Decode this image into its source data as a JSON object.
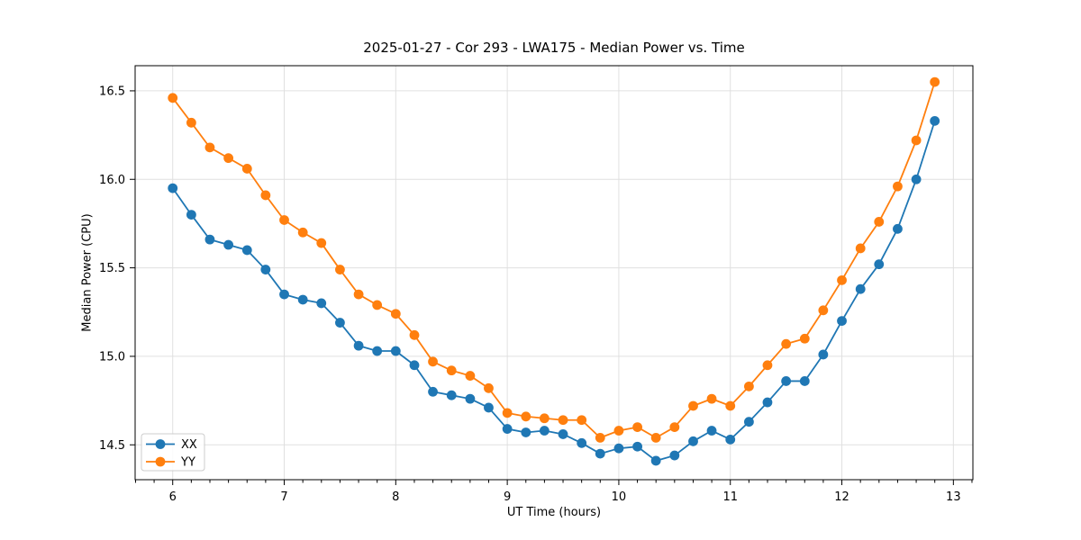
{
  "chart_data": {
    "type": "line",
    "title": "2025-01-27 - Cor 293 - LWA175 - Median Power vs. Time",
    "xlabel": "UT Time (hours)",
    "ylabel": "Median Power (CPU)",
    "xlim": [
      5.663,
      13.175
    ],
    "ylim": [
      14.303,
      16.642
    ],
    "grid": true,
    "x_ticks": {
      "values": [
        6,
        7,
        8,
        9,
        10,
        11,
        12,
        13
      ],
      "labels": [
        "6",
        "7",
        "8",
        "9",
        "10",
        "11",
        "12",
        "13"
      ],
      "minor_step_hours": 0.1667
    },
    "y_ticks": {
      "values": [
        14.5,
        15.0,
        15.5,
        16.0,
        16.5
      ],
      "labels": [
        "14.5",
        "15.0",
        "15.5",
        "16.0",
        "16.5"
      ]
    },
    "legend": {
      "position": "lower-left",
      "entries": [
        "XX",
        "YY"
      ]
    },
    "colors": {
      "XX": "#1f77b4",
      "YY": "#ff7f0e",
      "grid": "#e0e0e0",
      "spine": "#000000"
    },
    "x": [
      6.0,
      6.167,
      6.333,
      6.5,
      6.667,
      6.833,
      7.0,
      7.167,
      7.333,
      7.5,
      7.667,
      7.833,
      8.0,
      8.167,
      8.333,
      8.5,
      8.667,
      8.833,
      9.0,
      9.167,
      9.333,
      9.5,
      9.667,
      9.833,
      10.0,
      10.167,
      10.333,
      10.5,
      10.667,
      10.833,
      11.0,
      11.167,
      11.333,
      11.5,
      11.667,
      11.833,
      12.0,
      12.167,
      12.333,
      12.5,
      12.667,
      12.833
    ],
    "series": [
      {
        "name": "XX",
        "color": "#1f77b4",
        "marker": "circle",
        "values": [
          15.95,
          15.8,
          15.66,
          15.63,
          15.6,
          15.49,
          15.35,
          15.32,
          15.3,
          15.19,
          15.06,
          15.03,
          15.03,
          14.95,
          14.8,
          14.78,
          14.76,
          14.71,
          14.59,
          14.57,
          14.58,
          14.56,
          14.51,
          14.45,
          14.48,
          14.49,
          14.41,
          14.44,
          14.52,
          14.58,
          14.53,
          14.63,
          14.74,
          14.86,
          14.86,
          15.01,
          15.2,
          15.38,
          15.52,
          15.72,
          16.0,
          16.33
        ]
      },
      {
        "name": "YY",
        "color": "#ff7f0e",
        "marker": "circle",
        "values": [
          16.46,
          16.32,
          16.18,
          16.12,
          16.06,
          15.91,
          15.77,
          15.7,
          15.64,
          15.49,
          15.35,
          15.29,
          15.24,
          15.12,
          14.97,
          14.92,
          14.89,
          14.82,
          14.68,
          14.66,
          14.65,
          14.64,
          14.64,
          14.54,
          14.58,
          14.6,
          14.54,
          14.6,
          14.72,
          14.76,
          14.72,
          14.83,
          14.95,
          15.07,
          15.1,
          15.26,
          15.43,
          15.61,
          15.76,
          15.96,
          16.22,
          16.55
        ]
      }
    ]
  }
}
